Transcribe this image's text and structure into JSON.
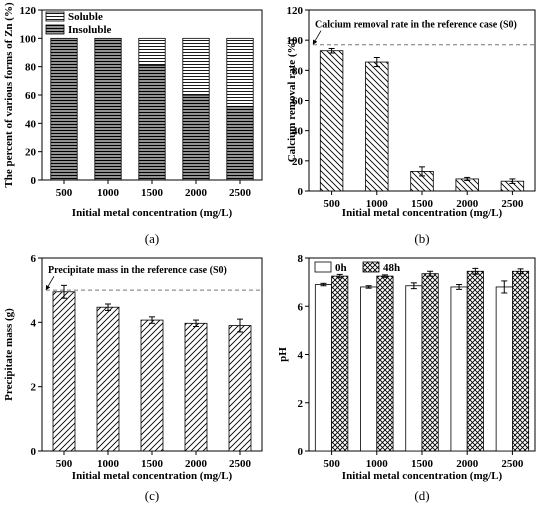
{
  "chart_data": [
    {
      "type": "bar",
      "panel_label": "(a)",
      "stacked": true,
      "categories": [
        "500",
        "1000",
        "1500",
        "2000",
        "2500"
      ],
      "series": [
        {
          "name": "Soluble",
          "values": [
            0,
            0,
            19,
            40,
            48
          ]
        },
        {
          "name": "Insoluble",
          "values": [
            100,
            100,
            81,
            60,
            52
          ]
        }
      ],
      "xlabel": "Initial metal concentration (mg/L)",
      "ylabel": "The percent of various forms of Zn (%)",
      "ylim": [
        0,
        120
      ],
      "yticks": [
        "0",
        "20",
        "40",
        "60",
        "80",
        "100",
        "120"
      ],
      "legend_position": "top-left"
    },
    {
      "type": "bar",
      "panel_label": "(b)",
      "categories": [
        "500",
        "1000",
        "1500",
        "2000",
        "2500"
      ],
      "values": [
        93,
        85.5,
        13,
        8,
        6.5
      ],
      "errors": [
        1.5,
        3,
        3,
        1,
        1.5
      ],
      "xlabel": "Initial metal concentration (mg/L)",
      "ylabel": "Calcium removal rate (%)",
      "ylim": [
        0,
        120
      ],
      "yticks": [
        "0",
        "20",
        "40",
        "60",
        "80",
        "100",
        "120"
      ],
      "reference_value": 97,
      "annotation": "Calcium removal rate in the reference case (S0)"
    },
    {
      "type": "bar",
      "panel_label": "(c)",
      "categories": [
        "500",
        "1000",
        "1500",
        "2000",
        "2500"
      ],
      "values": [
        4.95,
        4.47,
        4.07,
        3.97,
        3.9
      ],
      "errors": [
        0.2,
        0.1,
        0.1,
        0.1,
        0.2
      ],
      "xlabel": "Initial metal concentration (mg/L)",
      "ylabel": "Precipitate mass (g)",
      "ylim": [
        0,
        6
      ],
      "yticks": [
        "0",
        "2",
        "4",
        "6"
      ],
      "reference_value": 5.0,
      "annotation": "Precipitate mass in the reference case (S0)"
    },
    {
      "type": "bar",
      "panel_label": "(d)",
      "categories": [
        "500",
        "1000",
        "1500",
        "2000",
        "2500"
      ],
      "series": [
        {
          "name": "0h",
          "values": [
            6.9,
            6.8,
            6.85,
            6.8,
            6.8
          ],
          "errors": [
            0.05,
            0.05,
            0.12,
            0.1,
            0.25
          ]
        },
        {
          "name": "48h",
          "values": [
            7.25,
            7.25,
            7.35,
            7.45,
            7.45
          ],
          "errors": [
            0.07,
            0.05,
            0.1,
            0.12,
            0.1
          ]
        }
      ],
      "xlabel": "Initial metal concentration (mg/L)",
      "ylabel": "pH",
      "ylim": [
        0,
        8
      ],
      "yticks": [
        "0",
        "2",
        "4",
        "6",
        "8"
      ],
      "legend_position": "top-left"
    }
  ]
}
